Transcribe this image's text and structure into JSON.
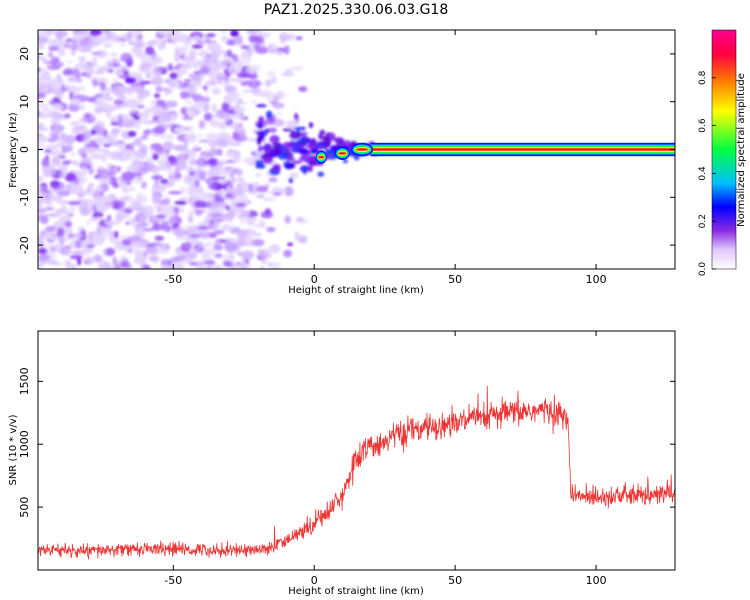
{
  "chart_data": [
    {
      "type": "heatmap",
      "title": "PAZ1.2025.330.06.03.G18",
      "xlabel": "Height of straight line (km)",
      "ylabel": "Frequency (Hz)",
      "xlim": [
        -98,
        128
      ],
      "ylim": [
        -25,
        25
      ],
      "xticks": [
        "-50",
        "0",
        "50",
        "100"
      ],
      "yticks": [
        "20",
        "10",
        "0",
        "-10",
        "-20"
      ],
      "colorbar": {
        "label": "Normalized spectral amplitude",
        "range": [
          0,
          1
        ],
        "ticks": [
          "0.0",
          "0.2",
          "0.4",
          "0.6",
          "0.8"
        ],
        "colors": [
          "#ffffff",
          "#e0c8ff",
          "#8a2be2",
          "#0000ff",
          "#00c0ff",
          "#00ff40",
          "#ffff00",
          "#ff8000",
          "#ff0040",
          "#ff0090"
        ]
      },
      "features": {
        "noise_region_km": [
          -98,
          -10
        ],
        "transition_region_km": [
          -20,
          22
        ],
        "line_start_km": 20,
        "line_frequency_hz": 0,
        "line_band_hz": [
          -1,
          1
        ]
      }
    },
    {
      "type": "line",
      "xlabel": "Height of straight line (km)",
      "ylabel": "SNR (10 * v/v)",
      "xlim": [
        -98,
        128
      ],
      "ylim": [
        0,
        1900
      ],
      "xticks": [
        "-50",
        "0",
        "50",
        "100"
      ],
      "yticks": [
        "1500",
        "1000",
        "500"
      ],
      "color": "#ee3333",
      "series": [
        {
          "name": "SNR",
          "x": [
            -98,
            -80,
            -60,
            -40,
            -20,
            -15,
            -10,
            -5,
            0,
            5,
            10,
            13,
            15,
            20,
            30,
            40,
            50,
            60,
            70,
            80,
            85,
            90,
            91,
            92,
            100,
            110,
            120,
            128
          ],
          "y": [
            160,
            150,
            170,
            160,
            160,
            180,
            230,
            300,
            380,
            470,
            600,
            780,
            880,
            980,
            1080,
            1130,
            1170,
            1210,
            1250,
            1270,
            1260,
            1200,
            620,
            580,
            590,
            590,
            590,
            620
          ]
        }
      ]
    }
  ]
}
